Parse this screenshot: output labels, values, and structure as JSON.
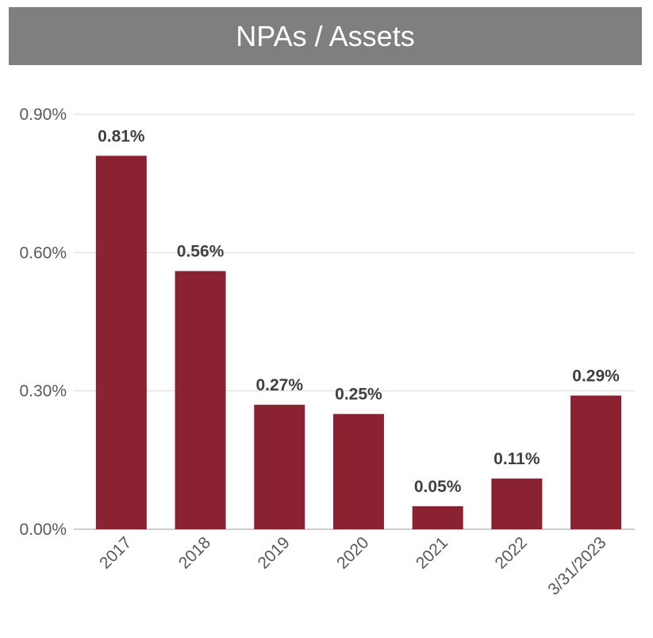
{
  "chart_data": {
    "type": "bar",
    "title": "NPAs / Assets",
    "categories": [
      "2017",
      "2018",
      "2019",
      "2020",
      "2021",
      "2022",
      "3/31/2023"
    ],
    "values": [
      0.81,
      0.56,
      0.27,
      0.25,
      0.05,
      0.11,
      0.29
    ],
    "data_labels": [
      "0.81%",
      "0.56%",
      "0.27%",
      "0.25%",
      "0.05%",
      "0.11%",
      "0.29%"
    ],
    "yticks": [
      0.0,
      0.3,
      0.6,
      0.9
    ],
    "ytick_labels": [
      "0.00%",
      "0.30%",
      "0.60%",
      "0.90%"
    ],
    "ylim": [
      0,
      0.9
    ],
    "xlabel": "",
    "ylabel": "",
    "grid": true,
    "legend": "none",
    "bar_color": "#8b2232",
    "title_bg_color": "#7f7f7f"
  }
}
